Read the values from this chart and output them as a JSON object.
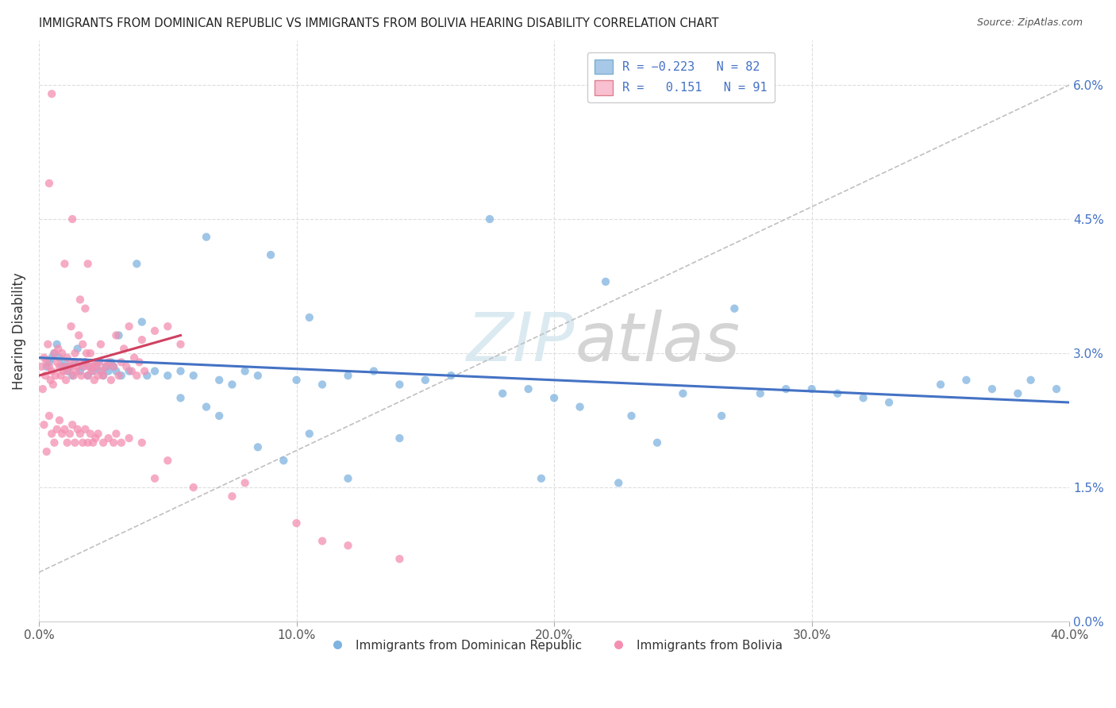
{
  "title": "IMMIGRANTS FROM DOMINICAN REPUBLIC VS IMMIGRANTS FROM BOLIVIA HEARING DISABILITY CORRELATION CHART",
  "source": "Source: ZipAtlas.com",
  "ylabel": "Hearing Disability",
  "legend_labels": [
    "Immigrants from Dominican Republic",
    "Immigrants from Bolivia"
  ],
  "watermark": "ZIPAtlas",
  "blue_color": "#7fb3e0",
  "pink_color": "#f48fb1",
  "blue_line_color": "#4472c4",
  "pink_line_color": "#d04060",
  "xlim": [
    0.0,
    40.0
  ],
  "ylim": [
    0.0,
    6.5
  ],
  "x_ticks": [
    0.0,
    10.0,
    20.0,
    30.0,
    40.0
  ],
  "y_ticks": [
    0.0,
    1.5,
    3.0,
    4.5,
    6.0
  ],
  "blue_scatter": [
    [
      0.3,
      2.85
    ],
    [
      0.4,
      2.9
    ],
    [
      0.5,
      2.95
    ],
    [
      0.6,
      3.0
    ],
    [
      0.7,
      3.1
    ],
    [
      0.8,
      2.95
    ],
    [
      0.9,
      2.85
    ],
    [
      1.0,
      2.9
    ],
    [
      1.1,
      2.8
    ],
    [
      1.2,
      2.85
    ],
    [
      1.3,
      2.75
    ],
    [
      1.4,
      2.9
    ],
    [
      1.5,
      3.05
    ],
    [
      1.6,
      2.8
    ],
    [
      1.7,
      2.85
    ],
    [
      1.8,
      2.9
    ],
    [
      1.9,
      2.75
    ],
    [
      2.0,
      2.85
    ],
    [
      2.1,
      2.8
    ],
    [
      2.2,
      2.85
    ],
    [
      2.3,
      2.9
    ],
    [
      2.4,
      2.8
    ],
    [
      2.5,
      2.75
    ],
    [
      2.6,
      2.85
    ],
    [
      2.7,
      2.8
    ],
    [
      2.8,
      2.9
    ],
    [
      2.9,
      2.85
    ],
    [
      3.0,
      2.8
    ],
    [
      3.1,
      3.2
    ],
    [
      3.2,
      2.75
    ],
    [
      3.5,
      2.8
    ],
    [
      3.8,
      4.0
    ],
    [
      4.0,
      3.35
    ],
    [
      4.2,
      2.75
    ],
    [
      4.5,
      2.8
    ],
    [
      5.0,
      2.75
    ],
    [
      5.5,
      2.8
    ],
    [
      6.0,
      2.75
    ],
    [
      6.5,
      4.3
    ],
    [
      7.0,
      2.7
    ],
    [
      7.5,
      2.65
    ],
    [
      8.0,
      2.8
    ],
    [
      8.5,
      2.75
    ],
    [
      9.0,
      4.1
    ],
    [
      10.0,
      2.7
    ],
    [
      10.5,
      3.4
    ],
    [
      11.0,
      2.65
    ],
    [
      12.0,
      2.75
    ],
    [
      13.0,
      2.8
    ],
    [
      14.0,
      2.65
    ],
    [
      15.0,
      2.7
    ],
    [
      16.0,
      2.75
    ],
    [
      17.5,
      4.5
    ],
    [
      18.0,
      2.55
    ],
    [
      19.0,
      2.6
    ],
    [
      20.0,
      2.5
    ],
    [
      21.0,
      2.4
    ],
    [
      22.0,
      3.8
    ],
    [
      23.0,
      2.3
    ],
    [
      24.0,
      2.0
    ],
    [
      25.0,
      2.55
    ],
    [
      26.5,
      2.3
    ],
    [
      27.0,
      3.5
    ],
    [
      28.0,
      2.55
    ],
    [
      29.0,
      2.6
    ],
    [
      30.0,
      2.6
    ],
    [
      31.0,
      2.55
    ],
    [
      32.0,
      2.5
    ],
    [
      33.0,
      2.45
    ],
    [
      35.0,
      2.65
    ],
    [
      36.0,
      2.7
    ],
    [
      37.0,
      2.6
    ],
    [
      38.0,
      2.55
    ],
    [
      38.5,
      2.7
    ],
    [
      39.5,
      2.6
    ],
    [
      5.5,
      2.5
    ],
    [
      6.5,
      2.4
    ],
    [
      7.0,
      2.3
    ],
    [
      8.5,
      1.95
    ],
    [
      9.5,
      1.8
    ],
    [
      10.5,
      2.1
    ],
    [
      12.0,
      1.6
    ],
    [
      14.0,
      2.05
    ],
    [
      19.5,
      1.6
    ],
    [
      22.5,
      1.55
    ]
  ],
  "pink_scatter": [
    [
      0.1,
      2.85
    ],
    [
      0.15,
      2.6
    ],
    [
      0.2,
      2.95
    ],
    [
      0.25,
      2.75
    ],
    [
      0.3,
      2.9
    ],
    [
      0.35,
      3.1
    ],
    [
      0.4,
      2.85
    ],
    [
      0.45,
      2.7
    ],
    [
      0.5,
      2.8
    ],
    [
      0.55,
      2.65
    ],
    [
      0.6,
      3.0
    ],
    [
      0.65,
      2.75
    ],
    [
      0.7,
      2.9
    ],
    [
      0.75,
      3.05
    ],
    [
      0.8,
      2.85
    ],
    [
      0.85,
      2.75
    ],
    [
      0.9,
      3.0
    ],
    [
      0.95,
      2.8
    ],
    [
      1.0,
      2.85
    ],
    [
      1.05,
      2.7
    ],
    [
      1.1,
      2.95
    ],
    [
      1.15,
      2.8
    ],
    [
      1.2,
      2.85
    ],
    [
      1.25,
      3.3
    ],
    [
      1.3,
      2.9
    ],
    [
      1.35,
      2.75
    ],
    [
      1.4,
      3.0
    ],
    [
      1.45,
      2.8
    ],
    [
      1.5,
      2.85
    ],
    [
      1.55,
      3.2
    ],
    [
      1.6,
      2.9
    ],
    [
      1.65,
      2.75
    ],
    [
      1.7,
      3.1
    ],
    [
      1.75,
      2.85
    ],
    [
      1.8,
      2.9
    ],
    [
      1.85,
      3.0
    ],
    [
      1.9,
      2.75
    ],
    [
      1.95,
      2.85
    ],
    [
      2.0,
      3.0
    ],
    [
      2.05,
      2.8
    ],
    [
      2.1,
      2.85
    ],
    [
      2.15,
      2.7
    ],
    [
      2.2,
      2.9
    ],
    [
      2.25,
      2.85
    ],
    [
      2.3,
      2.75
    ],
    [
      2.35,
      2.9
    ],
    [
      2.4,
      3.1
    ],
    [
      2.45,
      2.8
    ],
    [
      2.5,
      2.75
    ],
    [
      2.6,
      2.85
    ],
    [
      2.7,
      2.9
    ],
    [
      2.8,
      2.7
    ],
    [
      2.9,
      2.85
    ],
    [
      3.0,
      3.2
    ],
    [
      3.1,
      2.75
    ],
    [
      3.2,
      2.9
    ],
    [
      3.3,
      3.05
    ],
    [
      3.4,
      2.85
    ],
    [
      3.5,
      3.3
    ],
    [
      3.6,
      2.8
    ],
    [
      3.7,
      2.95
    ],
    [
      3.8,
      2.75
    ],
    [
      3.9,
      2.9
    ],
    [
      4.0,
      3.15
    ],
    [
      4.1,
      2.8
    ],
    [
      4.5,
      3.25
    ],
    [
      5.0,
      3.3
    ],
    [
      5.5,
      3.1
    ],
    [
      0.4,
      4.9
    ],
    [
      0.5,
      5.9
    ],
    [
      1.0,
      4.0
    ],
    [
      1.3,
      4.5
    ],
    [
      1.6,
      3.6
    ],
    [
      1.8,
      3.5
    ],
    [
      1.9,
      4.0
    ],
    [
      0.2,
      2.2
    ],
    [
      0.3,
      1.9
    ],
    [
      0.4,
      2.3
    ],
    [
      0.5,
      2.1
    ],
    [
      0.6,
      2.0
    ],
    [
      0.7,
      2.15
    ],
    [
      0.8,
      2.25
    ],
    [
      0.9,
      2.1
    ],
    [
      1.0,
      2.15
    ],
    [
      1.1,
      2.0
    ],
    [
      1.2,
      2.1
    ],
    [
      1.3,
      2.2
    ],
    [
      1.4,
      2.0
    ],
    [
      1.5,
      2.15
    ],
    [
      1.6,
      2.1
    ],
    [
      1.7,
      2.0
    ],
    [
      1.8,
      2.15
    ],
    [
      1.9,
      2.0
    ],
    [
      2.0,
      2.1
    ],
    [
      2.1,
      2.0
    ],
    [
      2.2,
      2.05
    ],
    [
      2.3,
      2.1
    ],
    [
      2.5,
      2.0
    ],
    [
      2.7,
      2.05
    ],
    [
      2.9,
      2.0
    ],
    [
      3.0,
      2.1
    ],
    [
      3.2,
      2.0
    ],
    [
      3.5,
      2.05
    ],
    [
      4.0,
      2.0
    ],
    [
      4.5,
      1.6
    ],
    [
      5.0,
      1.8
    ],
    [
      6.0,
      1.5
    ],
    [
      7.5,
      1.4
    ],
    [
      8.0,
      1.55
    ],
    [
      10.0,
      1.1
    ],
    [
      11.0,
      0.9
    ],
    [
      12.0,
      0.85
    ],
    [
      14.0,
      0.7
    ]
  ],
  "blue_trendline": {
    "x_start": 0.0,
    "y_start": 2.95,
    "x_end": 40.0,
    "y_end": 2.45
  },
  "pink_trendline": {
    "x_start": 0.0,
    "y_start": 2.75,
    "x_end": 5.5,
    "y_end": 3.2
  },
  "ref_line": {
    "x_start": 0.0,
    "y_start": 0.55,
    "x_end": 40.0,
    "y_end": 6.0
  }
}
